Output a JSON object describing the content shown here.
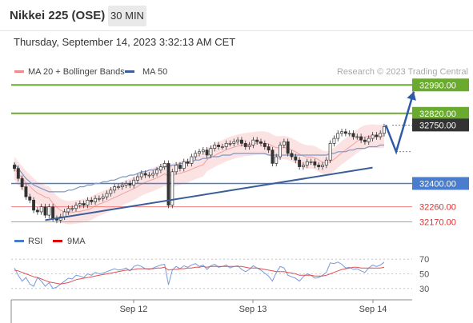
{
  "header": {
    "title": "Nikkei 225 (OSE)",
    "timeframe": "30 MIN"
  },
  "timestamp": "Thursday, September 14, 2023 3:32:13 AM CET",
  "copyright": "Research © 2023 Trading Central",
  "colors": {
    "levelGreen": "#6aaa2e",
    "levelBlue": "#4a7dcc",
    "levelRed": "#f08080",
    "current": "#333333",
    "bollinger": "#f8c0c0",
    "ma50": "#7a98c8",
    "trend": "#3a5e98",
    "rsi": "#7799dd",
    "rsi9ma": "#e05050"
  },
  "chart_data": [
    {
      "type": "line",
      "title": "Nikkei 225 (OSE)",
      "subtitle": "30 MIN",
      "legend": [
        {
          "name": "MA 20 + Bollinger Bands",
          "color": "#f08a8a"
        },
        {
          "name": "MA 50",
          "color": "#3a5e98"
        }
      ],
      "legend_position": "top-left",
      "x_ticks": [
        "Sep 12",
        "Sep 13",
        "Sep 14"
      ],
      "ylim": [
        32110,
        33020
      ],
      "levels": [
        {
          "value": 32990,
          "label": "32990.00",
          "color": "green"
        },
        {
          "value": 32820,
          "label": "32820.00",
          "color": "green"
        },
        {
          "value": 32750,
          "label": "32750.00",
          "color": "current"
        },
        {
          "value": 32400,
          "label": "32400.00",
          "color": "blue"
        },
        {
          "value": 32260,
          "label": "32260.00",
          "color": "red"
        },
        {
          "value": 32170,
          "label": "32170.00",
          "color": "red"
        }
      ],
      "price_series": [
        32490,
        32430,
        32380,
        32320,
        32300,
        32240,
        32230,
        32260,
        32210,
        32260,
        32190,
        32180,
        32200,
        32230,
        32250,
        32250,
        32270,
        32280,
        32270,
        32300,
        32290,
        32310,
        32310,
        32320,
        32340,
        32360,
        32380,
        32380,
        32390,
        32400,
        32390,
        32420,
        32440,
        32460,
        32450,
        32450,
        32460,
        32480,
        32500,
        32520,
        32270,
        32470,
        32510,
        32490,
        32530,
        32520,
        32560,
        32580,
        32590,
        32600,
        32570,
        32610,
        32630,
        32620,
        32620,
        32640,
        32640,
        32650,
        32660,
        32640,
        32620,
        32630,
        32660,
        32650,
        32640,
        32620,
        32600,
        32520,
        32560,
        32630,
        32650,
        32580,
        32560,
        32540,
        32500,
        32510,
        32530,
        32530,
        32510,
        32500,
        32510,
        32540,
        32640,
        32670,
        32700,
        32710,
        32700,
        32700,
        32680,
        32680,
        32660,
        32650,
        32670,
        32690,
        32680,
        32700,
        32740
      ],
      "ma50": [
        32520,
        32490,
        32460,
        32430,
        32410,
        32390,
        32380,
        32370,
        32360,
        32350,
        32350,
        32350,
        32350,
        32350,
        32360,
        32360,
        32370,
        32380,
        32380,
        32390,
        32390,
        32400,
        32400,
        32410,
        32410,
        32420,
        32420,
        32430,
        32440,
        32440,
        32450,
        32450,
        32460,
        32470,
        32470,
        32480,
        32480,
        32490,
        32490,
        32500,
        32500,
        32510,
        32510,
        32520,
        32520,
        32530,
        32530,
        32540,
        32540,
        32550,
        32550,
        32560,
        32560,
        32560,
        32570,
        32570,
        32570,
        32580,
        32580,
        32580,
        32580,
        32580,
        32580,
        32580,
        32580,
        32580,
        32570,
        32570,
        32570,
        32570,
        32570,
        32570,
        32570,
        32570,
        32570,
        32570,
        32570,
        32570,
        32570,
        32570,
        32570,
        32570,
        32580,
        32580,
        32590,
        32590,
        32590,
        32600,
        32600,
        32610,
        32610,
        32610,
        32620,
        32620,
        32620,
        32630,
        32630
      ],
      "trendline": {
        "from": {
          "index": 8,
          "value": 32180
        },
        "to": {
          "index": 93,
          "value": 32495
        }
      },
      "projection": [
        32750,
        32590,
        32950
      ],
      "current_dotted": [
        32750,
        32590
      ]
    },
    {
      "type": "line",
      "legend": [
        {
          "name": "RSI",
          "color": "#4a7dcc"
        },
        {
          "name": "9MA",
          "color": "#e00000"
        }
      ],
      "ylim": [
        20,
        80
      ],
      "y_ticks": [
        70,
        50,
        30
      ],
      "rsi": [
        58,
        48,
        40,
        45,
        36,
        33,
        45,
        40,
        33,
        38,
        30,
        32,
        36,
        40,
        44,
        43,
        48,
        47,
        45,
        50,
        48,
        52,
        50,
        51,
        53,
        55,
        57,
        55,
        56,
        58,
        54,
        60,
        62,
        60,
        57,
        56,
        58,
        60,
        62,
        63,
        35,
        55,
        60,
        57,
        61,
        59,
        62,
        64,
        60,
        62,
        56,
        61,
        63,
        59,
        60,
        62,
        58,
        60,
        61,
        56,
        53,
        56,
        61,
        58,
        55,
        51,
        47,
        40,
        52,
        60,
        58,
        48,
        46,
        44,
        40,
        46,
        50,
        48,
        44,
        45,
        48,
        52,
        65,
        64,
        66,
        63,
        58,
        59,
        56,
        57,
        54,
        52,
        58,
        62,
        60,
        62,
        66
      ],
      "rsi_9ma": [
        55,
        54,
        52,
        50,
        48,
        46,
        45,
        43,
        41,
        39,
        38,
        37,
        36,
        37,
        38,
        40,
        42,
        43,
        44,
        45,
        46,
        47,
        48,
        49,
        50,
        51,
        52,
        53,
        54,
        55,
        55,
        56,
        57,
        57,
        57,
        57,
        57,
        58,
        58,
        59,
        55,
        56,
        56,
        57,
        57,
        58,
        58,
        59,
        59,
        60,
        59,
        60,
        60,
        60,
        60,
        60,
        60,
        60,
        60,
        60,
        59,
        58,
        58,
        58,
        57,
        56,
        55,
        54,
        53,
        53,
        53,
        52,
        51,
        50,
        48,
        48,
        48,
        48,
        47,
        47,
        47,
        48,
        50,
        52,
        54,
        56,
        57,
        58,
        59,
        59,
        58,
        58,
        58,
        58,
        58,
        58,
        59
      ],
      "x_ticks": [
        "Sep 12",
        "Sep 13",
        "Sep 14"
      ]
    }
  ]
}
